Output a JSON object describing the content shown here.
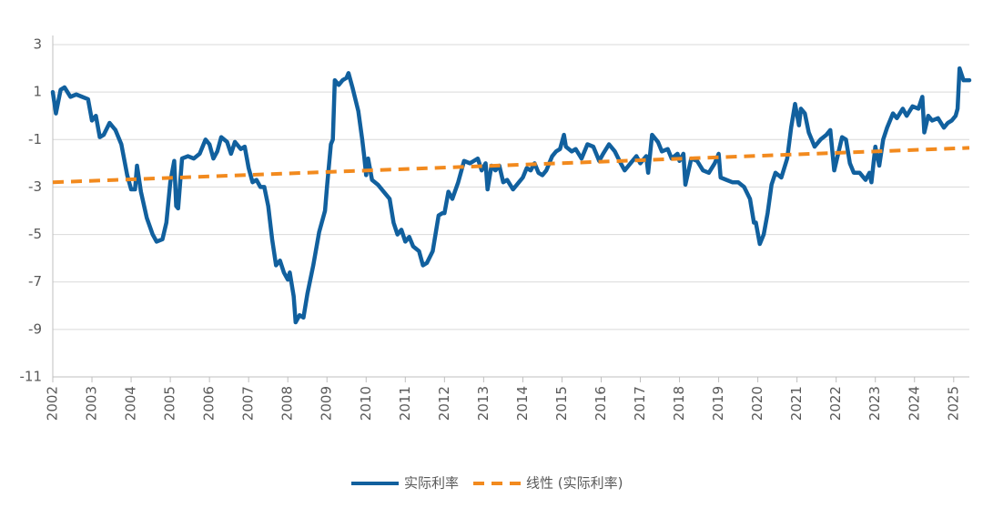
{
  "chart_data": {
    "type": "line",
    "xlim": [
      2002,
      2025.4
    ],
    "xticks": [
      2002,
      2003,
      2004,
      2005,
      2006,
      2007,
      2008,
      2009,
      2010,
      2011,
      2012,
      2013,
      2014,
      2015,
      2016,
      2017,
      2018,
      2019,
      2020,
      2021,
      2022,
      2023,
      2024,
      2025
    ],
    "ylim": [
      -11,
      3
    ],
    "yticks": [
      3,
      1,
      -1,
      -3,
      -5,
      -7,
      -9,
      -11
    ],
    "grid": true,
    "legend": "bottom",
    "series": [
      {
        "name": "实际利率",
        "color": "#11609e",
        "dash": false,
        "x": [
          2002.0,
          2002.08,
          2002.2,
          2002.3,
          2002.45,
          2002.6,
          2002.75,
          2002.9,
          2003.0,
          2003.1,
          2003.2,
          2003.3,
          2003.45,
          2003.6,
          2003.75,
          2003.9,
          2004.0,
          2004.1,
          2004.15,
          2004.25,
          2004.4,
          2004.55,
          2004.65,
          2004.8,
          2004.9,
          2005.0,
          2005.1,
          2005.15,
          2005.2,
          2005.3,
          2005.45,
          2005.6,
          2005.75,
          2005.9,
          2006.0,
          2006.1,
          2006.2,
          2006.3,
          2006.45,
          2006.55,
          2006.65,
          2006.8,
          2006.9,
          2007.0,
          2007.1,
          2007.2,
          2007.3,
          2007.4,
          2007.5,
          2007.6,
          2007.7,
          2007.8,
          2007.9,
          2008.0,
          2008.05,
          2008.15,
          2008.2,
          2008.3,
          2008.4,
          2008.5,
          2008.65,
          2008.8,
          2008.95,
          2009.0,
          2009.1,
          2009.15,
          2009.2,
          2009.3,
          2009.4,
          2009.5,
          2009.55,
          2009.65,
          2009.8,
          2009.9,
          2009.95,
          2010.0,
          2010.05,
          2010.15,
          2010.3,
          2010.45,
          2010.6,
          2010.7,
          2010.8,
          2010.9,
          2011.0,
          2011.1,
          2011.2,
          2011.35,
          2011.45,
          2011.55,
          2011.7,
          2011.85,
          2011.95,
          2012.0,
          2012.1,
          2012.2,
          2012.35,
          2012.5,
          2012.65,
          2012.75,
          2012.85,
          2012.95,
          2013.05,
          2013.1,
          2013.2,
          2013.3,
          2013.4,
          2013.5,
          2013.6,
          2013.75,
          2013.9,
          2014.0,
          2014.1,
          2014.2,
          2014.3,
          2014.4,
          2014.5,
          2014.6,
          2014.75,
          2014.85,
          2014.95,
          2015.05,
          2015.1,
          2015.25,
          2015.35,
          2015.5,
          2015.65,
          2015.8,
          2015.95,
          2016.05,
          2016.2,
          2016.35,
          2016.5,
          2016.6,
          2016.75,
          2016.9,
          2017.0,
          2017.15,
          2017.2,
          2017.3,
          2017.45,
          2017.55,
          2017.7,
          2017.8,
          2017.95,
          2018.0,
          2018.1,
          2018.15,
          2018.3,
          2018.45,
          2018.6,
          2018.75,
          2018.9,
          2019.0,
          2019.05,
          2019.2,
          2019.35,
          2019.5,
          2019.65,
          2019.8,
          2019.9,
          2019.95,
          2020.05,
          2020.15,
          2020.25,
          2020.35,
          2020.45,
          2020.6,
          2020.75,
          2020.85,
          2020.95,
          2021.05,
          2021.1,
          2021.2,
          2021.3,
          2021.45,
          2021.6,
          2021.75,
          2021.85,
          2021.95,
          2022.05,
          2022.15,
          2022.25,
          2022.35,
          2022.45,
          2022.6,
          2022.75,
          2022.85,
          2022.9,
          2023.0,
          2023.1,
          2023.2,
          2023.3,
          2023.45,
          2023.55,
          2023.7,
          2023.8,
          2023.95,
          2024.1,
          2024.2,
          2024.25,
          2024.35,
          2024.45,
          2024.6,
          2024.75,
          2024.85,
          2024.95,
          2025.05,
          2025.1,
          2025.15,
          2025.25,
          2025.4
        ],
        "values": [
          1.0,
          0.1,
          1.1,
          1.2,
          0.8,
          0.9,
          0.8,
          0.7,
          -0.2,
          0.0,
          -0.9,
          -0.8,
          -0.3,
          -0.6,
          -1.2,
          -2.5,
          -3.1,
          -3.1,
          -2.1,
          -3.2,
          -4.3,
          -5.0,
          -5.3,
          -5.2,
          -4.5,
          -2.8,
          -1.9,
          -3.8,
          -3.9,
          -1.8,
          -1.7,
          -1.8,
          -1.6,
          -1.0,
          -1.2,
          -1.8,
          -1.5,
          -0.9,
          -1.1,
          -1.6,
          -1.1,
          -1.4,
          -1.3,
          -2.2,
          -2.8,
          -2.7,
          -3.0,
          -3.0,
          -3.8,
          -5.2,
          -6.3,
          -6.1,
          -6.6,
          -6.9,
          -6.6,
          -7.6,
          -8.7,
          -8.4,
          -8.5,
          -7.5,
          -6.3,
          -4.9,
          -4.0,
          -3.0,
          -1.2,
          -1.0,
          1.5,
          1.3,
          1.5,
          1.6,
          1.8,
          1.2,
          0.2,
          -1.0,
          -1.7,
          -2.5,
          -1.8,
          -2.7,
          -2.9,
          -3.2,
          -3.5,
          -4.5,
          -5.0,
          -4.8,
          -5.3,
          -5.1,
          -5.5,
          -5.7,
          -6.3,
          -6.2,
          -5.7,
          -4.2,
          -4.1,
          -4.1,
          -3.2,
          -3.5,
          -2.8,
          -1.9,
          -2.0,
          -1.9,
          -1.8,
          -2.3,
          -2.0,
          -3.1,
          -2.1,
          -2.3,
          -2.1,
          -2.8,
          -2.7,
          -3.1,
          -2.8,
          -2.6,
          -2.2,
          -2.3,
          -2.0,
          -2.4,
          -2.5,
          -2.3,
          -1.7,
          -1.5,
          -1.4,
          -0.8,
          -1.3,
          -1.5,
          -1.4,
          -1.8,
          -1.2,
          -1.3,
          -1.9,
          -1.6,
          -1.2,
          -1.5,
          -2.0,
          -2.3,
          -2.0,
          -1.7,
          -2.0,
          -1.7,
          -2.4,
          -0.8,
          -1.1,
          -1.5,
          -1.4,
          -1.8,
          -1.6,
          -1.9,
          -1.6,
          -2.9,
          -1.8,
          -1.9,
          -2.3,
          -2.4,
          -2.0,
          -1.6,
          -2.6,
          -2.7,
          -2.8,
          -2.8,
          -3.0,
          -3.5,
          -4.5,
          -4.5,
          -5.4,
          -5.0,
          -4.1,
          -2.9,
          -2.4,
          -2.6,
          -1.8,
          -0.5,
          0.5,
          -0.4,
          0.3,
          0.1,
          -0.7,
          -1.3,
          -1.0,
          -0.8,
          -0.6,
          -2.3,
          -1.6,
          -0.9,
          -1.0,
          -2.0,
          -2.4,
          -2.4,
          -2.7,
          -2.4,
          -2.8,
          -1.3,
          -2.1,
          -1.0,
          -0.5,
          0.1,
          -0.1,
          0.3,
          0.0,
          0.4,
          0.3,
          0.8,
          -0.7,
          0.0,
          -0.2,
          -0.1,
          -0.5,
          -0.3,
          -0.2,
          0.0,
          0.3,
          2.0,
          1.5,
          1.5
        ]
      },
      {
        "name": "线性 (实际利率)",
        "color": "#f28a1e",
        "dash": true,
        "x": [
          2002,
          2025.4
        ],
        "values": [
          -2.8,
          -1.35
        ]
      }
    ]
  }
}
